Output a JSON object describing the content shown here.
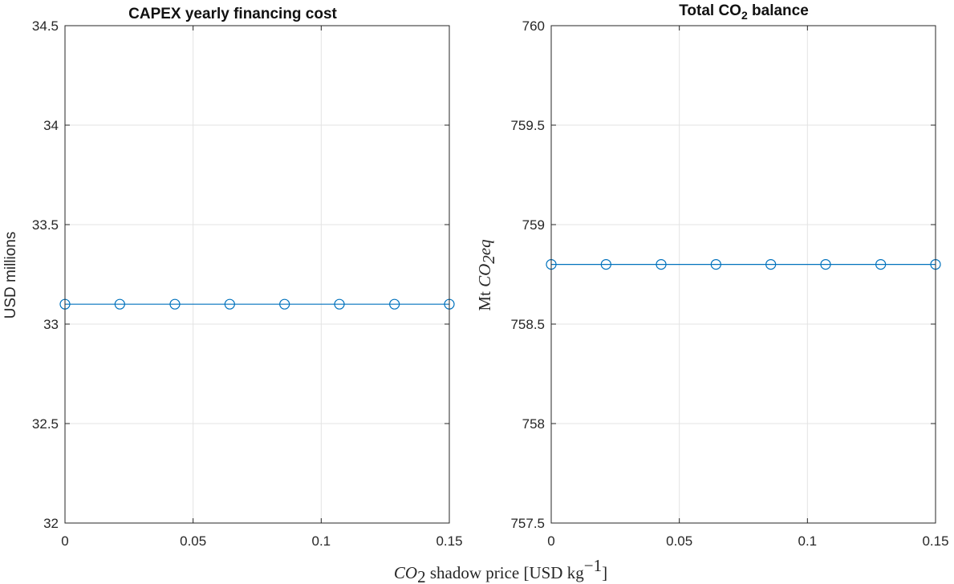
{
  "colors": {
    "series": "#0072BD",
    "grid": "#e3e3e3",
    "axis": "#262626"
  },
  "xaxis": {
    "label_symbol": "CO",
    "label_symbol_sub": "2",
    "label_text": " shadow price [USD kg",
    "label_sup": "−1",
    "label_close": "]",
    "ticks": [
      "0",
      "0.05",
      "0.1",
      "0.15"
    ]
  },
  "chart_data": [
    {
      "type": "line",
      "title": "CAPEX yearly financing cost",
      "ylabel": "USD millions",
      "xlim": [
        0,
        0.15
      ],
      "ylim": [
        32,
        34.5
      ],
      "grid": true,
      "marker": "circle",
      "yticks": [
        "32",
        "32.5",
        "33",
        "33.5",
        "34",
        "34.5"
      ],
      "x": [
        0,
        0.0214,
        0.0429,
        0.0643,
        0.0857,
        0.1071,
        0.1286,
        0.15
      ],
      "series": [
        {
          "values": [
            33.1,
            33.1,
            33.1,
            33.1,
            33.1,
            33.1,
            33.1,
            33.1
          ]
        }
      ]
    },
    {
      "type": "line",
      "title_pre": "Total  CO",
      "title_sub": "2",
      "title_post": "  balance",
      "ylabel_pre": "Mt ",
      "ylabel_sym": "CO",
      "ylabel_sub": "2",
      "ylabel_post": "eq",
      "xlim": [
        0,
        0.15
      ],
      "ylim": [
        757.5,
        760
      ],
      "grid": true,
      "marker": "circle",
      "yticks": [
        "757.5",
        "758",
        "758.5",
        "759",
        "759.5",
        "760"
      ],
      "x": [
        0,
        0.0214,
        0.0429,
        0.0643,
        0.0857,
        0.1071,
        0.1286,
        0.15
      ],
      "series": [
        {
          "values": [
            758.8,
            758.8,
            758.8,
            758.8,
            758.8,
            758.8,
            758.8,
            758.8
          ]
        }
      ]
    }
  ]
}
